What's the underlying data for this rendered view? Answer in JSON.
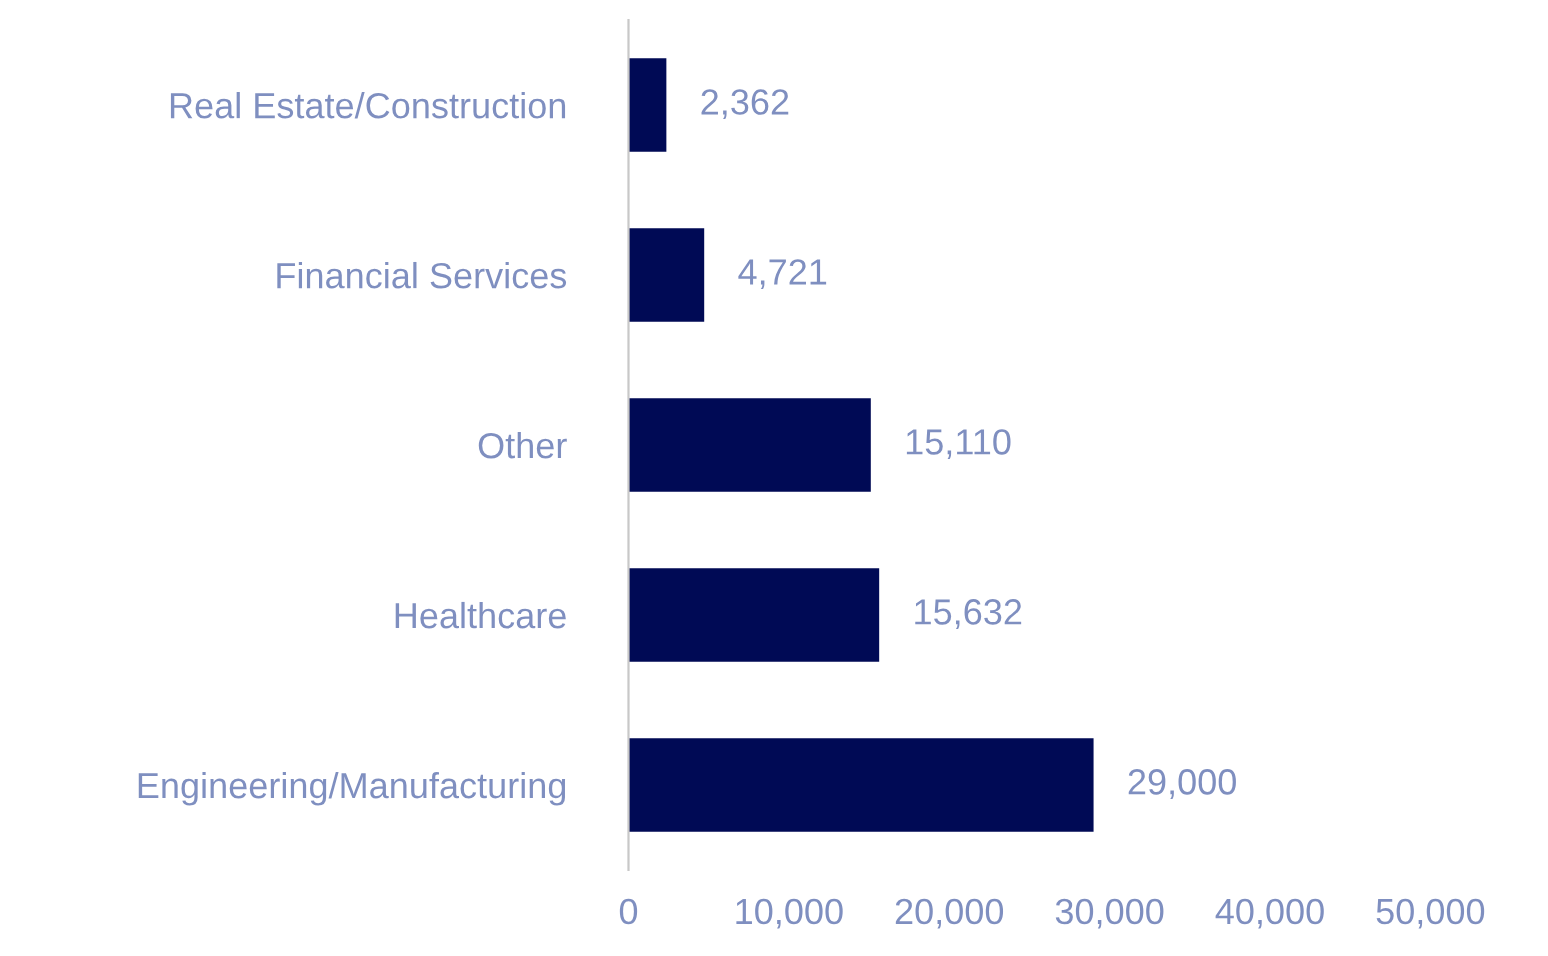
{
  "chart_data": {
    "type": "bar",
    "orientation": "horizontal",
    "categories": [
      "Real Estate/Construction",
      "Financial Services",
      "Other",
      "Healthcare",
      "Engineering/Manufacturing"
    ],
    "values": [
      2362,
      4721,
      15110,
      15632,
      29000
    ],
    "color": "#000a55",
    "value_labels": [
      "2,362",
      "4,721",
      "15,110",
      "15,632",
      "29,000"
    ],
    "xlim": [
      0,
      50000
    ],
    "xticks": [
      {
        "value": 0,
        "label": "0"
      },
      {
        "value": 10000,
        "label": "10,000"
      },
      {
        "value": 20000,
        "label": "20,000"
      },
      {
        "value": 30000,
        "label": "30,000"
      },
      {
        "value": 40000,
        "label": "40,000"
      },
      {
        "value": 50000,
        "label": "50,000"
      }
    ],
    "grid": false,
    "legend": false
  }
}
